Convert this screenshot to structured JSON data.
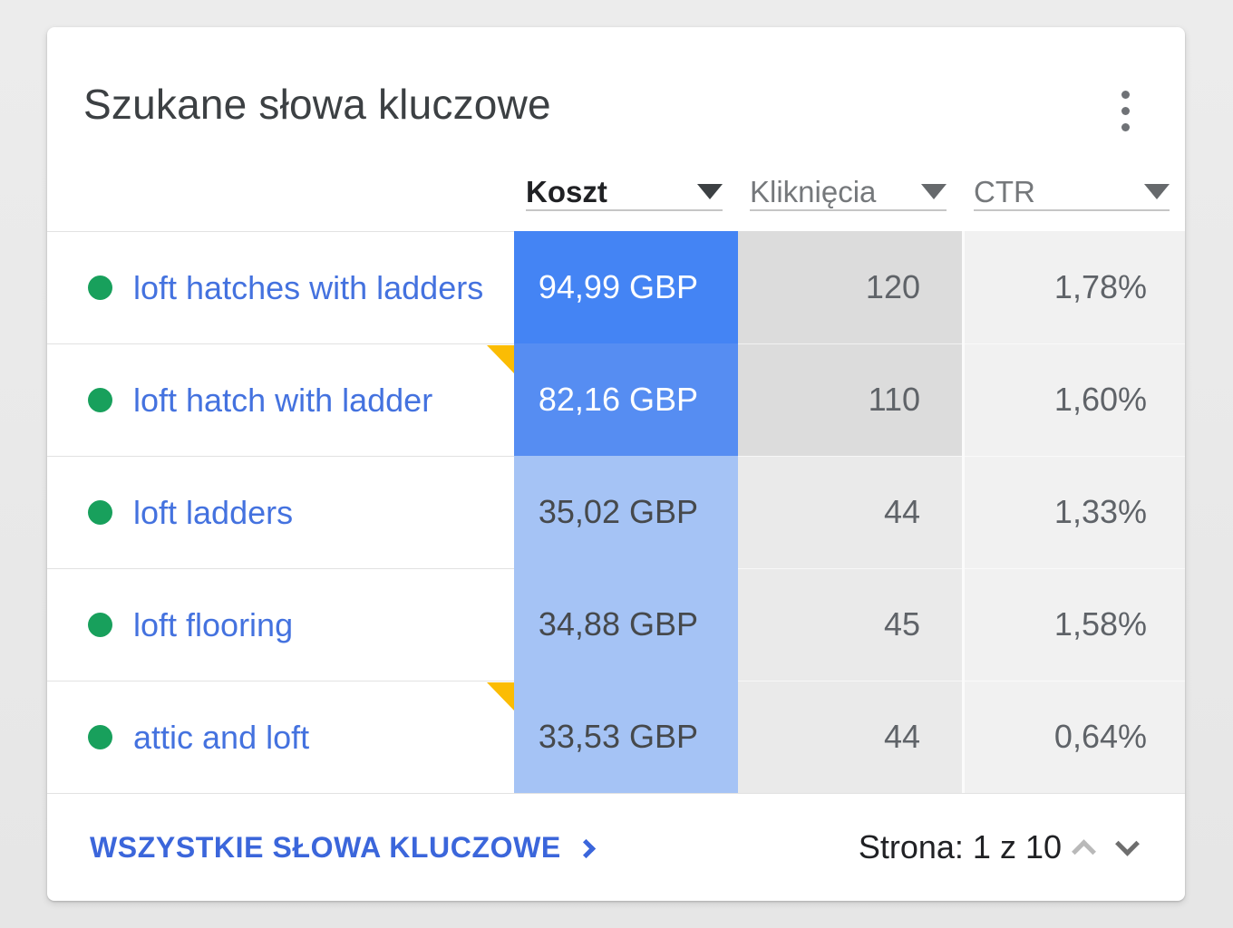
{
  "card": {
    "title": "Szukane słowa kluczowe"
  },
  "table": {
    "columns": [
      {
        "id": "koszt",
        "label": "Koszt",
        "selected": true
      },
      {
        "id": "klikniecia",
        "label": "Kliknięcia",
        "selected": false
      },
      {
        "id": "ctr",
        "label": "CTR",
        "selected": false
      }
    ],
    "rows": [
      {
        "keyword": "loft hatches with ladders",
        "cost": "94,99 GBP",
        "clicks": "120",
        "ctr": "1,78%",
        "note": false,
        "cost_heat": "high",
        "clicks_heat": "high"
      },
      {
        "keyword": "loft hatch with ladder",
        "cost": "82,16 GBP",
        "clicks": "110",
        "ctr": "1,60%",
        "note": true,
        "cost_heat": "mid",
        "clicks_heat": "high"
      },
      {
        "keyword": "loft ladders",
        "cost": "35,02 GBP",
        "clicks": "44",
        "ctr": "1,33%",
        "note": false,
        "cost_heat": "low",
        "clicks_heat": "low"
      },
      {
        "keyword": "loft flooring",
        "cost": "34,88 GBP",
        "clicks": "45",
        "ctr": "1,58%",
        "note": false,
        "cost_heat": "low",
        "clicks_heat": "low"
      },
      {
        "keyword": "attic and loft",
        "cost": "33,53 GBP",
        "clicks": "44",
        "ctr": "0,64%",
        "note": true,
        "cost_heat": "low",
        "clicks_heat": "low"
      }
    ]
  },
  "footer": {
    "all_keywords_label": "WSZYSTKIE SŁOWA KLUCZOWE",
    "page_label": "Strona: 1 z 10"
  },
  "colors": {
    "heat_high": "#4484F4",
    "heat_mid": "#568DF2",
    "heat_low": "#A5C3F5",
    "clicks_dark": "#DCDCDC",
    "clicks_light": "#EAEAEA",
    "ctr_bg": "#F1F1F1",
    "link_blue": "#4472DF",
    "footer_link_blue": "#3B66DB",
    "dot_green": "#18A05C",
    "note_yellow": "#FBBC04",
    "cell_text": "#5F6368"
  }
}
